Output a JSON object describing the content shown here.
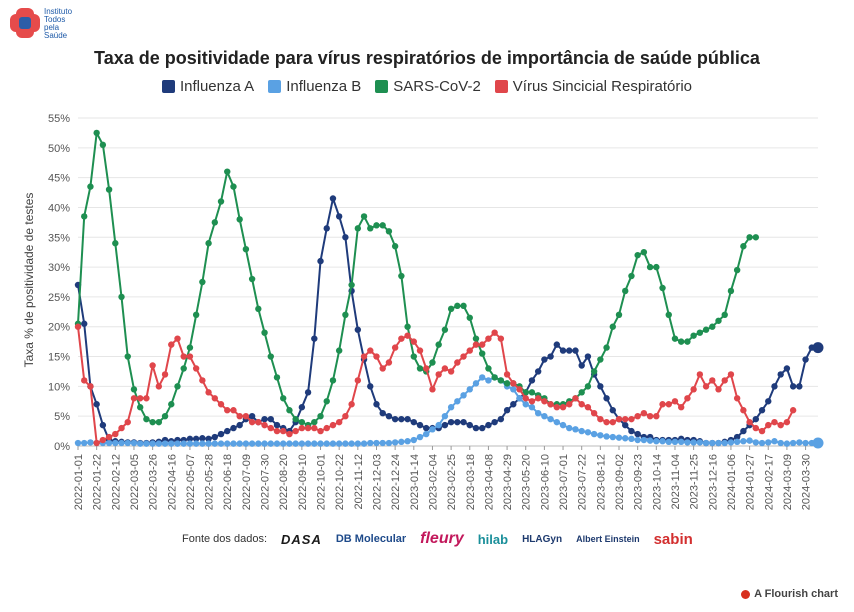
{
  "brand": {
    "name_lines": [
      "Instituto",
      "Todos",
      "pela",
      "Saúde"
    ]
  },
  "colors": {
    "influenza_a": "#1f3b7b",
    "influenza_b": "#5aa1e3",
    "sars_cov_2": "#1e8f51",
    "vsr": "#e0464b"
  },
  "sources": {
    "label": "Fonte dos dados:",
    "items": [
      "DASA",
      "DB Molecular",
      "fleury",
      "hilab",
      "HLAGyn",
      "Albert Einstein",
      "sabin"
    ]
  },
  "footer": {
    "text": "A Flourish chart"
  },
  "chart_data": {
    "type": "line",
    "title": "Taxa de positividade para vírus respiratórios de importância de saúde pública",
    "xlabel": "",
    "ylabel": "Taxa % de positividade de testes",
    "ylim": [
      0,
      55
    ],
    "yticks": [
      "0%",
      "5%",
      "10%",
      "15%",
      "20%",
      "25%",
      "30%",
      "35%",
      "40%",
      "45%",
      "50%",
      "55%"
    ],
    "x_start": "2022-01-01",
    "x_step_weeks": 1,
    "x_tick_every": 3,
    "series": [
      {
        "name": "Influenza A",
        "color_key": "influenza_a",
        "values": [
          27.0,
          20.5,
          10.0,
          7.0,
          3.5,
          1.0,
          0.8,
          0.7,
          0.6,
          0.6,
          0.5,
          0.5,
          0.6,
          0.7,
          1.0,
          0.8,
          1.0,
          1.0,
          1.2,
          1.2,
          1.3,
          1.2,
          1.5,
          2.0,
          2.5,
          3.0,
          3.5,
          4.5,
          5.0,
          4.0,
          4.5,
          4.5,
          3.5,
          3.0,
          2.5,
          4.0,
          6.5,
          9.0,
          18.0,
          31.0,
          36.5,
          41.5,
          38.5,
          35.0,
          26.0,
          19.5,
          14.5,
          10.0,
          7.0,
          5.5,
          5.0,
          4.5,
          4.5,
          4.5,
          4.0,
          3.5,
          3.0,
          3.0,
          3.0,
          3.5,
          4.0,
          4.0,
          4.0,
          3.5,
          3.0,
          3.0,
          3.5,
          4.0,
          4.5,
          6.0,
          7.0,
          8.0,
          9.0,
          11.0,
          12.5,
          14.5,
          15.0,
          17.0,
          16.0,
          16.0,
          16.0,
          13.5,
          15.0,
          12.0,
          10.0,
          8.0,
          6.0,
          4.5,
          3.5,
          2.5,
          2.0,
          1.5,
          1.5,
          1.0,
          1.0,
          1.0,
          1.0,
          1.2,
          1.0,
          1.0,
          0.8,
          0.5,
          0.5,
          0.5,
          0.7,
          1.0,
          1.5,
          2.5,
          3.5,
          4.5,
          6.0,
          7.5,
          10.0,
          12.0,
          13.0,
          10.0,
          10.0,
          14.5,
          16.5,
          16.5
        ]
      },
      {
        "name": "Influenza B",
        "color_key": "influenza_b",
        "values": [
          0.5,
          0.5,
          0.6,
          0.5,
          0.5,
          0.5,
          0.5,
          0.5,
          0.5,
          0.5,
          0.4,
          0.4,
          0.4,
          0.4,
          0.4,
          0.4,
          0.4,
          0.4,
          0.4,
          0.4,
          0.4,
          0.4,
          0.4,
          0.4,
          0.4,
          0.4,
          0.4,
          0.4,
          0.4,
          0.4,
          0.4,
          0.4,
          0.4,
          0.4,
          0.4,
          0.4,
          0.4,
          0.4,
          0.4,
          0.4,
          0.4,
          0.4,
          0.4,
          0.4,
          0.4,
          0.4,
          0.4,
          0.5,
          0.5,
          0.5,
          0.5,
          0.6,
          0.7,
          0.8,
          1.0,
          1.5,
          2.0,
          2.8,
          3.5,
          5.0,
          6.5,
          7.5,
          8.5,
          9.5,
          10.5,
          11.5,
          11.0,
          11.5,
          11.0,
          10.0,
          9.5,
          8.0,
          7.0,
          6.5,
          5.5,
          5.0,
          4.5,
          4.0,
          3.5,
          3.0,
          2.8,
          2.5,
          2.3,
          2.0,
          1.8,
          1.6,
          1.5,
          1.4,
          1.3,
          1.2,
          1.0,
          1.0,
          0.9,
          0.8,
          0.8,
          0.7,
          0.7,
          0.7,
          0.6,
          0.6,
          0.6,
          0.5,
          0.5,
          0.5,
          0.5,
          0.6,
          0.7,
          0.8,
          0.9,
          0.6,
          0.5,
          0.6,
          0.8,
          0.5,
          0.4,
          0.5,
          0.6,
          0.5,
          0.5,
          0.5
        ]
      },
      {
        "name": "SARS-CoV-2",
        "color_key": "sars_cov_2",
        "values": [
          20.5,
          38.5,
          43.5,
          52.5,
          50.5,
          43.0,
          34.0,
          25.0,
          15.0,
          9.5,
          6.5,
          4.5,
          4.0,
          4.0,
          5.0,
          7.0,
          10.0,
          13.0,
          16.5,
          22.0,
          27.5,
          34.0,
          37.5,
          41.0,
          46.0,
          43.5,
          38.0,
          33.0,
          28.0,
          23.0,
          19.0,
          15.0,
          11.5,
          8.0,
          6.0,
          4.5,
          4.0,
          3.5,
          4.0,
          5.0,
          7.5,
          11.0,
          16.0,
          22.0,
          27.0,
          36.5,
          38.5,
          36.5,
          37.0,
          37.0,
          36.0,
          33.5,
          28.5,
          20.0,
          15.0,
          13.0,
          12.5,
          14.0,
          17.0,
          19.5,
          23.0,
          23.5,
          23.5,
          21.5,
          18.0,
          15.5,
          13.0,
          11.5,
          11.0,
          10.5,
          10.5,
          10.0,
          9.0,
          9.0,
          8.5,
          8.0,
          7.0,
          7.0,
          7.0,
          7.5,
          8.0,
          9.0,
          10.0,
          12.5,
          14.5,
          16.5,
          20.0,
          22.0,
          26.0,
          28.5,
          32.0,
          32.5,
          30.0,
          30.0,
          26.5,
          22.0,
          18.0,
          17.5,
          17.5,
          18.5,
          19.0,
          19.5,
          20.0,
          21.0,
          22.0,
          26.0,
          29.5,
          33.5,
          35.0,
          35.0
        ]
      },
      {
        "name": "Vírus Sincicial Respiratório",
        "color_key": "vsr",
        "values": [
          20.0,
          11.0,
          10.0,
          0.5,
          1.0,
          1.5,
          2.0,
          3.0,
          4.0,
          8.0,
          8.0,
          8.0,
          13.5,
          10.0,
          12.0,
          17.0,
          18.0,
          15.0,
          15.0,
          13.0,
          11.0,
          9.0,
          8.0,
          7.0,
          6.0,
          6.0,
          5.0,
          5.0,
          4.0,
          4.0,
          3.5,
          3.0,
          2.5,
          2.5,
          2.0,
          2.5,
          3.0,
          3.0,
          3.0,
          2.5,
          3.0,
          3.5,
          4.0,
          5.0,
          7.0,
          11.0,
          15.0,
          16.0,
          15.0,
          13.0,
          14.0,
          16.5,
          18.0,
          18.5,
          17.5,
          16.0,
          13.0,
          9.5,
          12.0,
          13.0,
          12.5,
          14.0,
          15.0,
          16.0,
          17.0,
          17.0,
          18.0,
          19.0,
          18.0,
          12.0,
          10.5,
          9.5,
          8.0,
          7.5,
          8.0,
          7.5,
          7.0,
          6.5,
          6.5,
          7.0,
          8.0,
          7.0,
          6.5,
          5.5,
          4.5,
          4.0,
          4.0,
          4.5,
          4.5,
          4.5,
          5.0,
          5.5,
          5.0,
          5.0,
          7.0,
          7.0,
          7.5,
          6.5,
          8.0,
          9.5,
          12.0,
          10.0,
          11.0,
          9.5,
          11.0,
          12.0,
          8.0,
          6.0,
          4.0,
          3.0,
          2.5,
          3.5,
          4.0,
          3.5,
          4.0,
          6.0
        ]
      }
    ]
  }
}
